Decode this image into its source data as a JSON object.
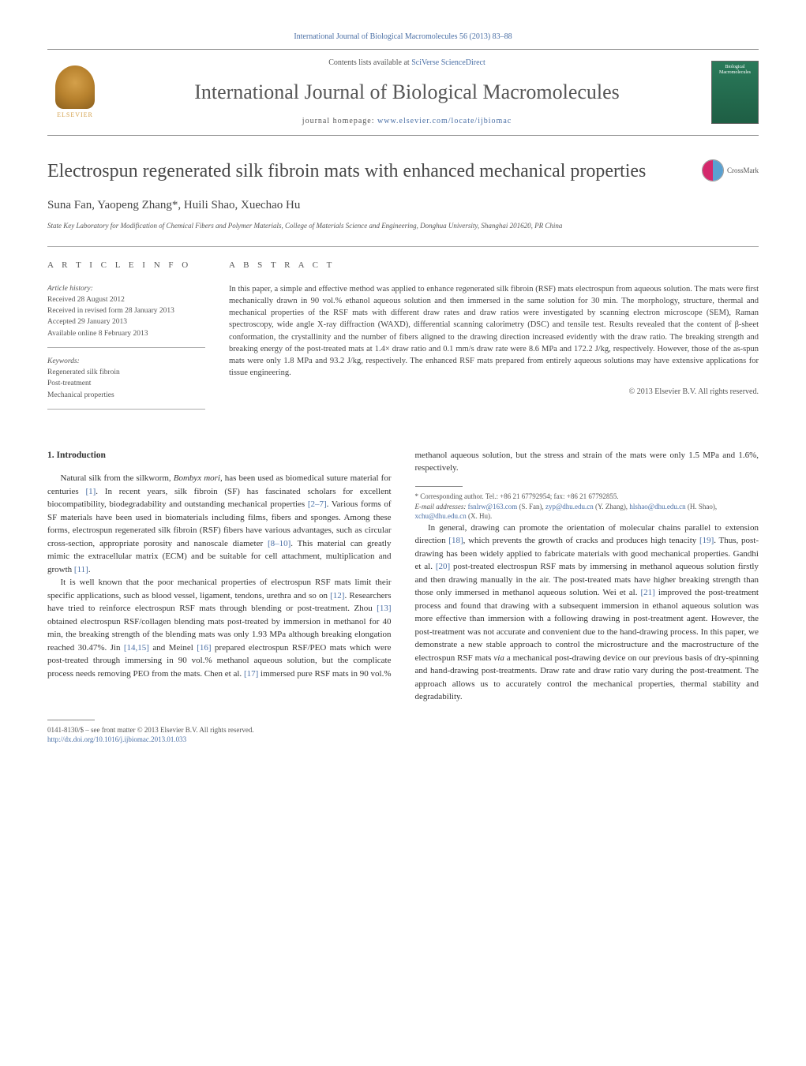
{
  "header": {
    "citation_link": "International Journal of Biological Macromolecules 56 (2013) 83–88",
    "contents_prefix": "Contents lists available at ",
    "contents_link": "SciVerse ScienceDirect",
    "journal_name": "International Journal of Biological Macromolecules",
    "homepage_prefix": "journal homepage: ",
    "homepage_link": "www.elsevier.com/locate/ijbiomac",
    "publisher": "ELSEVIER",
    "cover_title": "Biological Macromolecules"
  },
  "crossmark": {
    "label": "CrossMark"
  },
  "article": {
    "title": "Electrospun regenerated silk fibroin mats with enhanced mechanical properties",
    "authors": "Suna Fan, Yaopeng Zhang*, Huili Shao, Xuechao Hu",
    "affiliation": "State Key Laboratory for Modification of Chemical Fibers and Polymer Materials, College of Materials Science and Engineering, Donghua University, Shanghai 201620, PR China"
  },
  "info": {
    "heading": "a r t i c l e   i n f o",
    "history_label": "Article history:",
    "received": "Received 28 August 2012",
    "revised": "Received in revised form 28 January 2013",
    "accepted": "Accepted 29 January 2013",
    "online": "Available online 8 February 2013",
    "keywords_label": "Keywords:",
    "kw1": "Regenerated silk fibroin",
    "kw2": "Post-treatment",
    "kw3": "Mechanical properties"
  },
  "abstract": {
    "heading": "a b s t r a c t",
    "text": "In this paper, a simple and effective method was applied to enhance regenerated silk fibroin (RSF) mats electrospun from aqueous solution. The mats were first mechanically drawn in 90 vol.% ethanol aqueous solution and then immersed in the same solution for 30 min. The morphology, structure, thermal and mechanical properties of the RSF mats with different draw rates and draw ratios were investigated by scanning electron microscope (SEM), Raman spectroscopy, wide angle X-ray diffraction (WAXD), differential scanning calorimetry (DSC) and tensile test. Results revealed that the content of β-sheet conformation, the crystallinity and the number of fibers aligned to the drawing direction increased evidently with the draw ratio. The breaking strength and breaking energy of the post-treated mats at 1.4× draw ratio and 0.1 mm/s draw rate were 8.6 MPa and 172.2 J/kg, respectively. However, those of the as-spun mats were only 1.8 MPa and 93.2 J/kg, respectively. The enhanced RSF mats prepared from entirely aqueous solutions may have extensive applications for tissue engineering.",
    "copyright": "© 2013 Elsevier B.V. All rights reserved."
  },
  "intro": {
    "heading": "1. Introduction",
    "p1_a": "Natural silk from the silkworm, ",
    "p1_species": "Bombyx mori",
    "p1_b": ", has been used as biomedical suture material for centuries ",
    "p1_ref1": "[1]",
    "p1_c": ". In recent years, silk fibroin (SF) has fascinated scholars for excellent biocompatibility, biodegradability and outstanding mechanical properties ",
    "p1_ref2": "[2–7]",
    "p1_d": ". Various forms of SF materials have been used in biomaterials including films, fibers and sponges. Among these forms, electrospun regenerated silk fibroin (RSF) fibers have various advantages, such as circular cross-section, appropriate porosity and nanoscale diameter ",
    "p1_ref3": "[8–10]",
    "p1_e": ". This material can greatly mimic the extracellular matrix (ECM) and be suitable for cell attachment, multiplication and growth ",
    "p1_ref4": "[11]",
    "p1_f": ".",
    "p2_a": "It is well known that the poor mechanical properties of electrospun RSF mats limit their specific applications, such as blood vessel, ligament, tendons, urethra and so on ",
    "p2_ref1": "[12]",
    "p2_b": ". Researchers have tried to reinforce electrospun RSF mats through blending or post-treatment. Zhou ",
    "p2_ref2": "[13]",
    "p2_c": " obtained electrospun RSF/collagen blending mats post-treated by immersion in methanol for 40 min, the breaking strength of the blending mats was only 1.93 MPa although breaking elongation reached 30.47%. Jin ",
    "p2_ref3": "[14,15]",
    "p2_d": " and Meinel ",
    "p2_ref4": "[16]",
    "p2_e": " prepared electrospun RSF/PEO mats which were post-treated through immersing in 90 vol.% methanol aqueous solution, but the complicate process needs removing PEO from the mats. Chen et al. ",
    "p2_ref5": "[17]",
    "p2_f": " immersed pure RSF mats in 90 vol.% methanol aqueous solution, but the stress and strain of the mats were only 1.5 MPa and 1.6%, respectively.",
    "p3_a": "In general, drawing can promote the orientation of molecular chains parallel to extension direction ",
    "p3_ref1": "[18]",
    "p3_b": ", which prevents the growth of cracks and produces high tenacity ",
    "p3_ref2": "[19]",
    "p3_c": ". Thus, post-drawing has been widely applied to fabricate materials with good mechanical properties. Gandhi et al. ",
    "p3_ref3": "[20]",
    "p3_d": " post-treated electrospun RSF mats by immersing in methanol aqueous solution firstly and then drawing manually in the air. The post-treated mats have higher breaking strength than those only immersed in methanol aqueous solution. Wei et al. ",
    "p3_ref4": "[21]",
    "p3_e": " improved the post-treatment process and found that drawing with a subsequent immersion in ethanol aqueous solution was more effective than immersion with a following drawing in post-treatment agent. However, the post-treatment was not accurate and convenient due to the hand-drawing process. In this paper, we demonstrate a new stable approach to control the microstructure and the macrostructure of the electrospun RSF mats ",
    "p3_via": "via",
    "p3_f": " a mechanical post-drawing device on our previous basis of dry-spinning and hand-drawing post-treatments. Draw rate and draw ratio vary during the post-treatment. The approach allows us to accurately control the mechanical properties, thermal stability and degradability."
  },
  "corr": {
    "star": "* Corresponding author. Tel.: +86 21 67792954; fax: +86 21 67792855.",
    "email_label": "E-mail addresses: ",
    "e1": "fsnlrw@163.com",
    "n1": " (S. Fan), ",
    "e2": "zyp@dhu.edu.cn",
    "n2": " (Y. Zhang), ",
    "e3": "hlshao@dhu.edu.cn",
    "n3": " (H. Shao), ",
    "e4": "xchu@dhu.edu.cn",
    "n4": " (X. Hu)."
  },
  "footer": {
    "issn": "0141-8130/$ – see front matter © 2013 Elsevier B.V. All rights reserved.",
    "doi": "http://dx.doi.org/10.1016/j.ijbiomac.2013.01.033"
  },
  "colors": {
    "link": "#4a6fa5",
    "text": "#333333",
    "muted": "#555555",
    "border": "#aaaaaa",
    "crossmark_left": "#d4296c",
    "crossmark_right": "#5aa0d0",
    "elsevier": "#d4a04a",
    "cover": "#2a7a5a"
  },
  "typography": {
    "body_pt": 11,
    "title_pt": 24,
    "journal_pt": 26,
    "abstract_pt": 10.5,
    "small_pt": 9
  }
}
